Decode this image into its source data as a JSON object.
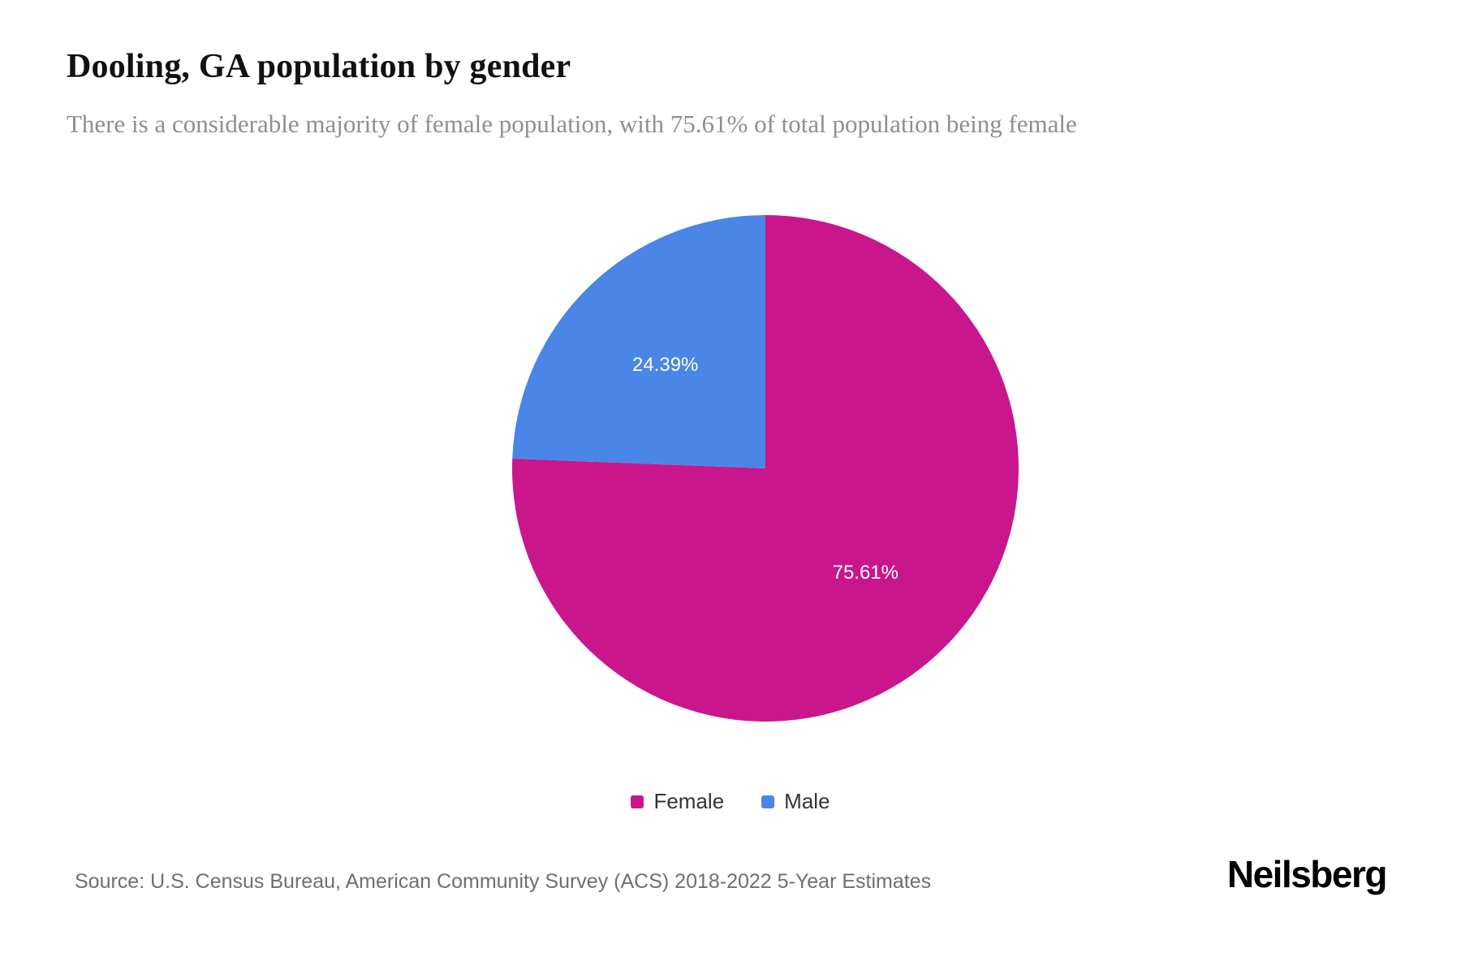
{
  "header": {
    "title": "Dooling, GA population by gender",
    "subtitle": "There is a considerable majority of female population, with 75.61% of total population being female"
  },
  "chart_data": {
    "type": "pie",
    "title": "Dooling, GA population by gender",
    "categories": [
      "Female",
      "Male"
    ],
    "values": [
      75.61,
      24.39
    ],
    "unit": "%",
    "slices": [
      {
        "label": "Female",
        "value": 75.61,
        "display": "75.61%",
        "color": "#c9168d"
      },
      {
        "label": "Male",
        "value": 24.39,
        "display": "24.39%",
        "color": "#4a86e8"
      }
    ],
    "start_angle": 0,
    "direction": "clockwise",
    "data_label_color": "#ffffff",
    "legend_position": "bottom",
    "grid": false
  },
  "legend": {
    "items": [
      {
        "label": "Female",
        "color": "#c9168d"
      },
      {
        "label": "Male",
        "color": "#4a86e8"
      }
    ]
  },
  "footer": {
    "source": "Source: U.S. Census Bureau, American Community Survey (ACS) 2018-2022 5-Year Estimates",
    "brand": "Neilsberg"
  }
}
